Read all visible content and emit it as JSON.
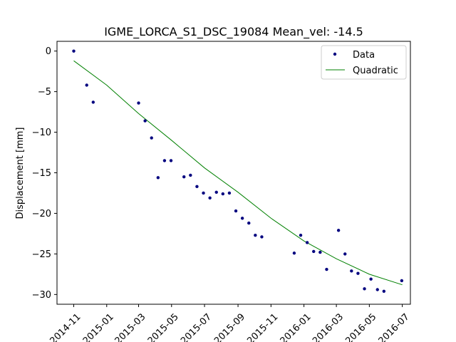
{
  "chart_data": {
    "type": "scatter",
    "title": "IGME_LORCA_S1_DSC_19084    Mean_vel: -14.5",
    "xlabel": "",
    "ylabel": "Displacement [mm]",
    "x_type": "date",
    "xlim": [
      "2014-10-01",
      "2016-07-16"
    ],
    "ylim": [
      -31.2,
      1.2
    ],
    "x_ticks": [
      "2014-11-01",
      "2015-01-01",
      "2015-03-01",
      "2015-05-01",
      "2015-07-01",
      "2015-09-01",
      "2015-11-01",
      "2016-01-01",
      "2016-03-01",
      "2016-05-01",
      "2016-07-01"
    ],
    "x_tick_labels": [
      "2014-11",
      "2015-01",
      "2015-03",
      "2015-05",
      "2015-07",
      "2015-09",
      "2015-11",
      "2016-01",
      "2016-03",
      "2016-05",
      "2016-07"
    ],
    "y_ticks": [
      0,
      -5,
      -10,
      -15,
      -20,
      -25,
      -30
    ],
    "y_tick_labels": [
      "0",
      "−5",
      "−10",
      "−15",
      "−20",
      "−25",
      "−30"
    ],
    "grid": false,
    "legend_position": "top-right",
    "series": [
      {
        "name": "Data",
        "kind": "scatter",
        "color": "#00007f",
        "x": [
          "2014-11-01",
          "2014-11-25",
          "2014-12-07",
          "2015-03-01",
          "2015-03-13",
          "2015-03-25",
          "2015-04-06",
          "2015-04-18",
          "2015-04-30",
          "2015-05-24",
          "2015-06-05",
          "2015-06-17",
          "2015-06-29",
          "2015-07-11",
          "2015-07-23",
          "2015-08-04",
          "2015-08-16",
          "2015-08-28",
          "2015-09-09",
          "2015-09-21",
          "2015-10-03",
          "2015-10-15",
          "2015-12-14",
          "2015-12-26",
          "2016-01-07",
          "2016-01-19",
          "2016-01-31",
          "2016-02-12",
          "2016-03-05",
          "2016-03-17",
          "2016-03-29",
          "2016-04-10",
          "2016-04-22",
          "2016-05-04",
          "2016-05-16",
          "2016-05-28",
          "2016-06-30"
        ],
        "y": [
          0.0,
          -4.2,
          -6.3,
          -6.4,
          -8.6,
          -10.7,
          -15.6,
          -13.5,
          -13.5,
          -15.5,
          -15.3,
          -16.7,
          -17.5,
          -18.1,
          -17.4,
          -17.6,
          -17.5,
          -19.7,
          -20.6,
          -21.2,
          -22.7,
          -22.9,
          -24.9,
          -22.7,
          -23.6,
          -24.7,
          -24.8,
          -26.9,
          -22.1,
          -25.0,
          -27.1,
          -27.4,
          -29.3,
          -28.1,
          -29.4,
          -29.6,
          -28.3
        ]
      },
      {
        "name": "Quadratic",
        "kind": "line",
        "color": "#008000",
        "x": [
          "2014-11-01",
          "2015-01-01",
          "2015-03-01",
          "2015-05-01",
          "2015-07-01",
          "2015-09-01",
          "2015-11-01",
          "2016-01-01",
          "2016-03-01",
          "2016-05-01",
          "2016-07-01"
        ],
        "y": [
          -1.2,
          -4.2,
          -7.7,
          -11.0,
          -14.4,
          -17.4,
          -20.6,
          -23.4,
          -25.6,
          -27.5,
          -28.8
        ]
      }
    ]
  }
}
